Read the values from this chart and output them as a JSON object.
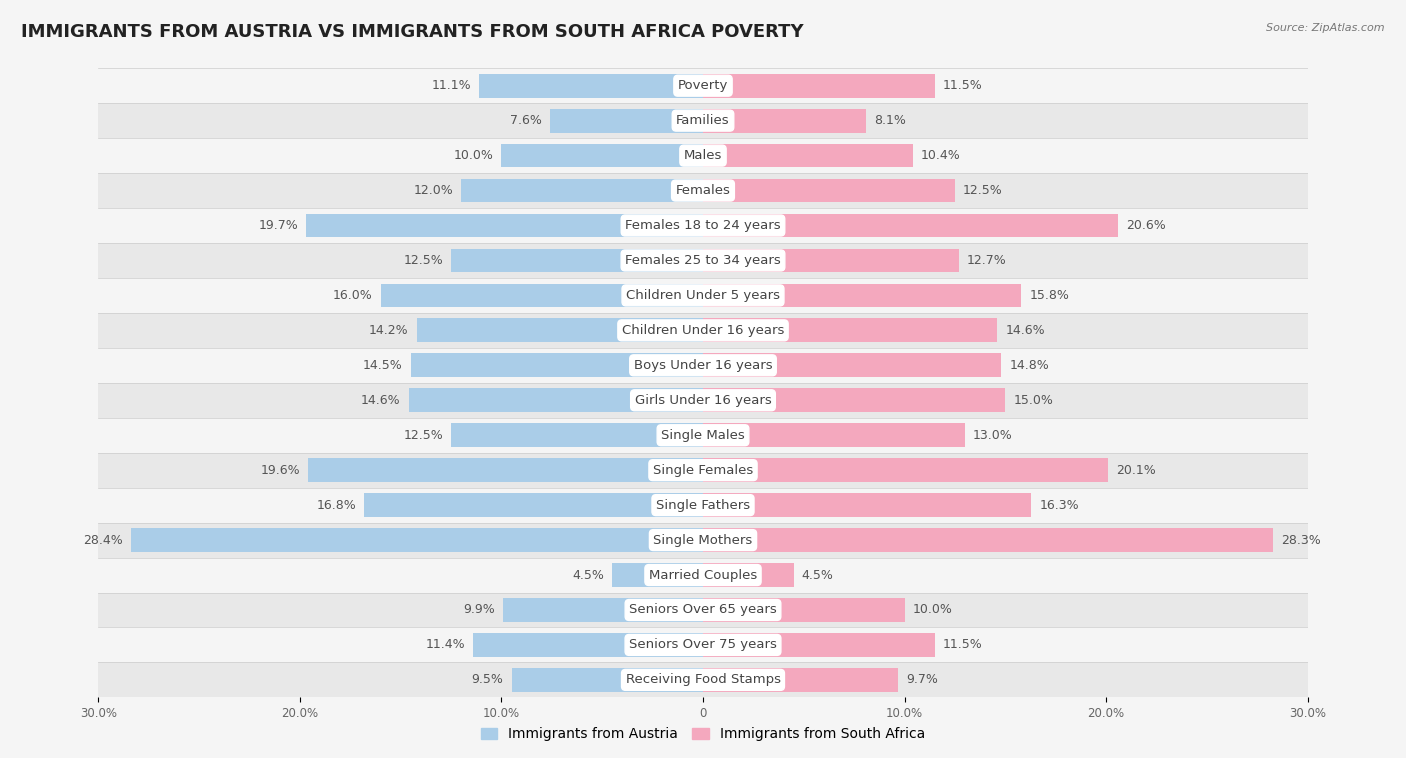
{
  "title": "IMMIGRANTS FROM AUSTRIA VS IMMIGRANTS FROM SOUTH AFRICA POVERTY",
  "source": "Source: ZipAtlas.com",
  "categories": [
    "Poverty",
    "Families",
    "Males",
    "Females",
    "Females 18 to 24 years",
    "Females 25 to 34 years",
    "Children Under 5 years",
    "Children Under 16 years",
    "Boys Under 16 years",
    "Girls Under 16 years",
    "Single Males",
    "Single Females",
    "Single Fathers",
    "Single Mothers",
    "Married Couples",
    "Seniors Over 65 years",
    "Seniors Over 75 years",
    "Receiving Food Stamps"
  ],
  "austria_values": [
    11.1,
    7.6,
    10.0,
    12.0,
    19.7,
    12.5,
    16.0,
    14.2,
    14.5,
    14.6,
    12.5,
    19.6,
    16.8,
    28.4,
    4.5,
    9.9,
    11.4,
    9.5
  ],
  "south_africa_values": [
    11.5,
    8.1,
    10.4,
    12.5,
    20.6,
    12.7,
    15.8,
    14.6,
    14.8,
    15.0,
    13.0,
    20.1,
    16.3,
    28.3,
    4.5,
    10.0,
    11.5,
    9.7
  ],
  "austria_color": "#aacde8",
  "south_africa_color": "#f4a8be",
  "background_color": "#f5f5f5",
  "row_color_light": "#f5f5f5",
  "row_color_dark": "#e8e8e8",
  "xlim": 30.0,
  "bar_height": 0.68,
  "title_fontsize": 13,
  "label_fontsize": 9.5,
  "value_fontsize": 9,
  "legend_fontsize": 10,
  "austria_label": "Immigrants from Austria",
  "south_africa_label": "Immigrants from South Africa"
}
